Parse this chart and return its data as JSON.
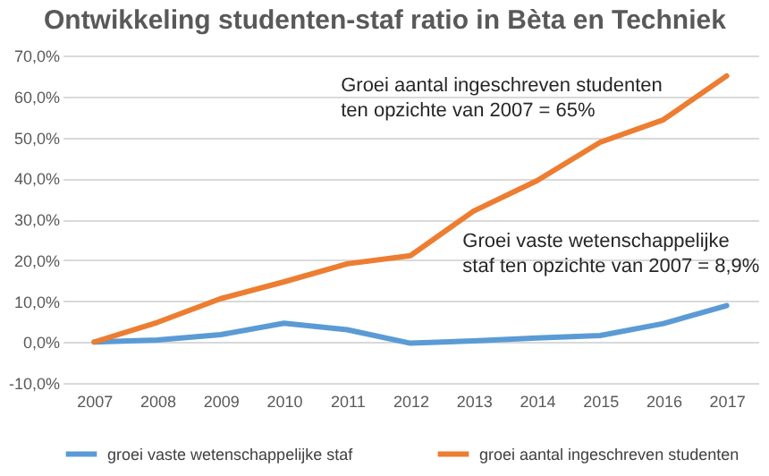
{
  "chart_data": {
    "type": "line",
    "title": "Ontwikkeling studenten-staf ratio in Bèta en Techniek",
    "categories": [
      "2007",
      "2008",
      "2009",
      "2010",
      "2011",
      "2012",
      "2013",
      "2014",
      "2015",
      "2016",
      "2017"
    ],
    "series": [
      {
        "name": "groei vaste wetenschappelijke staf",
        "color": "#5b9bd5",
        "values": [
          0,
          0.5,
          1.8,
          4.6,
          3,
          -0.3,
          0.3,
          1,
          1.6,
          4.5,
          8.9
        ]
      },
      {
        "name": "groei aantal ingeschreven studenten",
        "color": "#ed7d31",
        "values": [
          0,
          4.8,
          10.6,
          14.7,
          19.1,
          21.1,
          32,
          39.4,
          48.8,
          54.3,
          65
        ]
      }
    ],
    "ylim": [
      -10,
      70
    ],
    "yticks": [
      {
        "value": -10,
        "label": "-10,0%"
      },
      {
        "value": 0,
        "label": "0,0%"
      },
      {
        "value": 10,
        "label": "10,0%"
      },
      {
        "value": 20,
        "label": "20,0%"
      },
      {
        "value": 30,
        "label": "30,0%"
      },
      {
        "value": 40,
        "label": "40,0%"
      },
      {
        "value": 50,
        "label": "50,0%"
      },
      {
        "value": 60,
        "label": "60,0%"
      },
      {
        "value": 70,
        "label": "70,0%"
      }
    ],
    "annotations": [
      "Groei aantal ingeschreven studenten\nten opzichte van 2007 = 65%",
      "Groei vaste wetenschappelijke\nstaf ten opzichte van 2007 = 8,9%"
    ],
    "grid": "y",
    "legend": "bottom",
    "marker": "none",
    "line_style": "solid"
  }
}
